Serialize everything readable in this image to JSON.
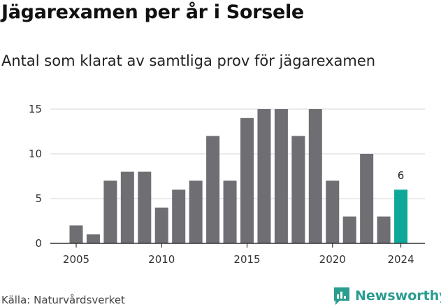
{
  "header": {
    "title": "Jägarexamen per år i Sorsele",
    "subtitle": "Antal som klarat av samtliga prov för jägarexamen"
  },
  "footer": {
    "source": "Källa: Naturvårdsverket",
    "brand": "Newsworthy",
    "brand_icon": "bar-chart-chat-icon"
  },
  "colors": {
    "bar": "#6e6e73",
    "highlight": "#0fa898",
    "grid": "#dddddd",
    "axis": "#333333",
    "brand": "#2a9d8f"
  },
  "chart_data": {
    "type": "bar",
    "title": "Jägarexamen per år i Sorsele",
    "subtitle": "Antal som klarat av samtliga prov för jägarexamen",
    "xlabel": "",
    "ylabel": "",
    "categories": [
      2005,
      2006,
      2007,
      2008,
      2009,
      2010,
      2011,
      2012,
      2013,
      2014,
      2015,
      2016,
      2017,
      2018,
      2019,
      2020,
      2021,
      2022,
      2023,
      2024
    ],
    "values": [
      2,
      1,
      7,
      8,
      8,
      4,
      6,
      7,
      12,
      7,
      14,
      15,
      15,
      12,
      15,
      7,
      3,
      10,
      3,
      6
    ],
    "highlight_category": 2024,
    "data_labels": [
      {
        "category": 2024,
        "text": "6"
      }
    ],
    "ylim": [
      0,
      15
    ],
    "yticks": [
      0,
      5,
      10,
      15
    ],
    "xticks": [
      2005,
      2010,
      2015,
      2020,
      2024
    ],
    "grid": true
  }
}
